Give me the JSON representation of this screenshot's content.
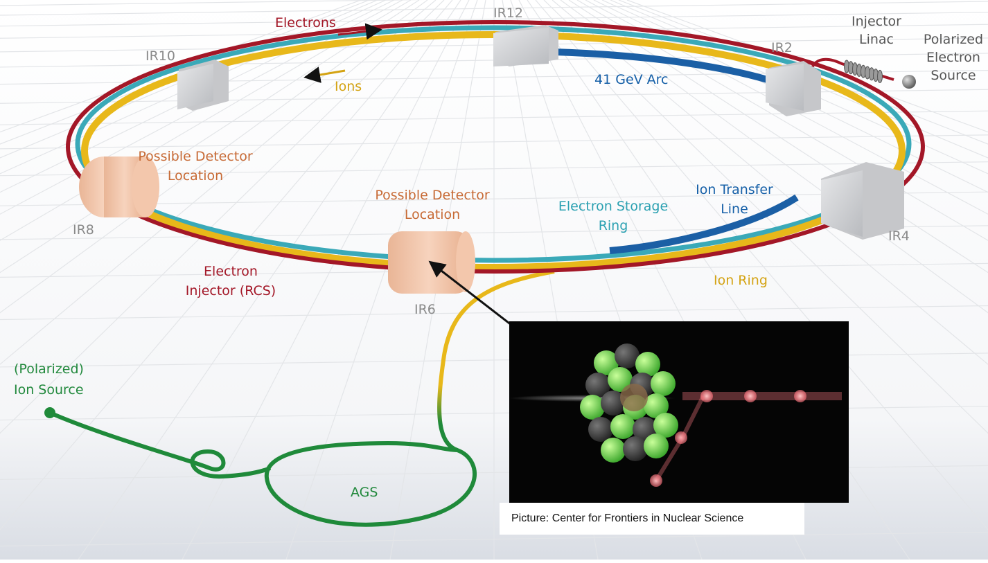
{
  "diagram": {
    "ir_labels": {
      "ir12": "IR12",
      "ir10": "IR10",
      "ir2": "IR2",
      "ir8": "IR8",
      "ir4": "IR4",
      "ir6": "IR6"
    },
    "beams": {
      "electrons": "Electrons",
      "ions": "Ions"
    },
    "arc_label": "41 GeV Arc",
    "injector_linac": [
      "Injector",
      "Linac"
    ],
    "polarized_electron_source": [
      "Polarized",
      "Electron",
      "Source"
    ],
    "detector_left": [
      "Possible Detector",
      "Location"
    ],
    "detector_center": [
      "Possible Detector",
      "Location"
    ],
    "electron_storage_ring": [
      "Electron Storage",
      "Ring"
    ],
    "ion_transfer_line": [
      "Ion Transfer",
      "Line"
    ],
    "electron_injector": [
      "Electron",
      "Injector (RCS)"
    ],
    "ion_ring": "Ion Ring",
    "ion_source": [
      "(Polarized)",
      "Ion Source"
    ],
    "ags": "AGS",
    "credit": "Picture: Center for Frontiers in Nuclear Science"
  },
  "colors": {
    "electron_ring": "#a31727",
    "ion_ring": "#e8b81a",
    "storage_ring": "#3aa9b8",
    "transfer_line": "#1b5fa5",
    "ion_source_line": "#1f8a3a",
    "detector": "#f2c2a3",
    "ir_box": "#d5d6d8"
  }
}
